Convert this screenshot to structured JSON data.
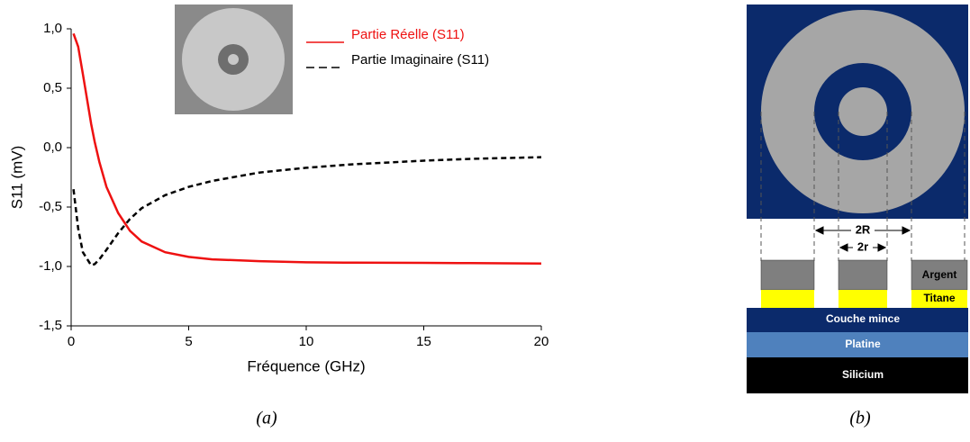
{
  "chart_data": {
    "type": "line",
    "xlabel": "Fréquence (GHz)",
    "ylabel": "S11 (mV)",
    "x": [
      0.1,
      0.3,
      0.5,
      0.85,
      1.0,
      1.2,
      1.5,
      2,
      2.5,
      3,
      4,
      5,
      6,
      8,
      10,
      12,
      15,
      17,
      20
    ],
    "series": [
      {
        "name": "Partie Réelle (S11)",
        "color": "#ee1111",
        "style": "solid",
        "values": [
          0.96,
          0.85,
          0.62,
          0.2,
          0.05,
          -0.12,
          -0.33,
          -0.55,
          -0.7,
          -0.79,
          -0.88,
          -0.92,
          -0.94,
          -0.955,
          -0.965,
          -0.968,
          -0.97,
          -0.972,
          -0.975
        ]
      },
      {
        "name": "Partie Imaginaire (S11)",
        "color": "#000000",
        "style": "dashed",
        "values": [
          -0.35,
          -0.68,
          -0.88,
          -0.99,
          -0.98,
          -0.94,
          -0.86,
          -0.72,
          -0.6,
          -0.51,
          -0.4,
          -0.33,
          -0.28,
          -0.21,
          -0.17,
          -0.14,
          -0.11,
          -0.095,
          -0.08
        ]
      }
    ],
    "xlim": [
      0,
      20
    ],
    "xticks": [
      0,
      5,
      10,
      15,
      20
    ],
    "ylim": [
      -1.5,
      1.0
    ],
    "yticks": [
      {
        "value": -1.5,
        "label": "-1,5"
      },
      {
        "value": -1.0,
        "label": "-1,0"
      },
      {
        "value": -0.5,
        "label": "-0,5"
      },
      {
        "value": 0,
        "label": "0,0"
      },
      {
        "value": 0.5,
        "label": "0,5"
      },
      {
        "value": 1.0,
        "label": "1,0"
      }
    ],
    "grid": false,
    "legend": "top-right"
  },
  "diagram": {
    "outer_label": "2R",
    "inner_label": "2r",
    "layers": [
      "Argent",
      "Titane",
      "Couche mince",
      "Platine",
      "Silicium"
    ]
  },
  "captions": [
    "(a)",
    "(b)"
  ]
}
